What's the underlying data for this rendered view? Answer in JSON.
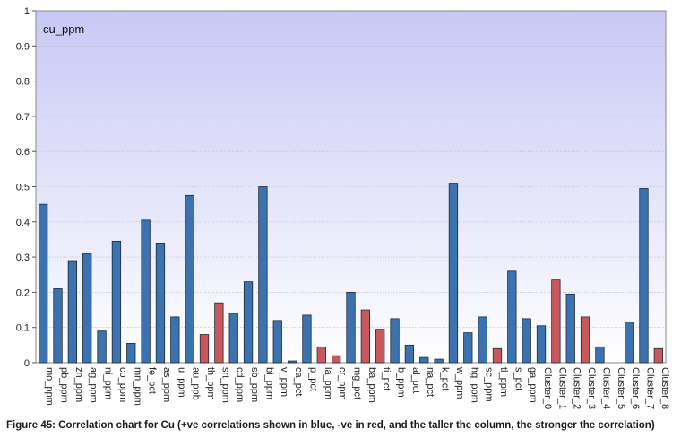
{
  "caption": "Figure 45: Correlation chart for Cu (+ve correlations shown in blue, -ve in red, and the taller the column, the stronger the correlation)",
  "colors": {
    "positive": "#3b73b0",
    "negative": "#c9585c",
    "plot_bg_top": "#c8c8f6",
    "plot_bg_bottom": "#ffffff"
  },
  "chart_data": {
    "type": "bar",
    "title": "cu_ppm",
    "xlabel": "",
    "ylabel": "",
    "ylim": [
      0,
      1
    ],
    "yticks": [
      "0",
      "0.1",
      "0.2",
      "0.3",
      "0.4",
      "0.5",
      "0.6",
      "0.7",
      "0.8",
      "0.9",
      "1"
    ],
    "grid": true,
    "legend": "none",
    "categories": [
      "mo_ppm",
      "pb_ppm",
      "zn_ppm",
      "ag_ppm",
      "ni_ppm",
      "co_ppm",
      "mn_ppm",
      "fe_pct",
      "as_ppm",
      "u_ppm",
      "au_ppb",
      "th_ppm",
      "srt_ppm",
      "cd_ppm",
      "sb_ppm",
      "bi_ppm",
      "v_ppm",
      "ca_pct",
      "p_pct",
      "la_ppm",
      "cr_ppm",
      "mg_pct",
      "ba_ppm",
      "ti_pct",
      "b_ppm",
      "al_pct",
      "na_pct",
      "k_pct",
      "w_ppm",
      "hg_ppm",
      "sc_ppm",
      "tl_ppm",
      "s_pct",
      "ga_ppm",
      "Cluster_0",
      "Cluster_1",
      "Cluster_2",
      "Cluster_3",
      "Cluster_4",
      "Cluster_5",
      "Cluster_6",
      "Cluster_7",
      "Cluster_8"
    ],
    "values": [
      0.45,
      0.21,
      0.29,
      0.31,
      0.09,
      0.345,
      0.055,
      0.405,
      0.34,
      0.13,
      0.475,
      0.08,
      0.17,
      0.14,
      0.23,
      0.5,
      0.12,
      0.005,
      0.135,
      0.045,
      0.02,
      0.2,
      0.15,
      0.095,
      0.125,
      0.05,
      0.015,
      0.01,
      0.51,
      0.085,
      0.13,
      0.04,
      0.26,
      0.125,
      0.105,
      0.235,
      0.195,
      0.13,
      0.045,
      0,
      0.115,
      0.495,
      0.04
    ],
    "sign": [
      "+",
      "+",
      "+",
      "+",
      "+",
      "+",
      "+",
      "+",
      "+",
      "+",
      "+",
      "-",
      "-",
      "+",
      "+",
      "+",
      "+",
      "+",
      "+",
      "-",
      "-",
      "+",
      "-",
      "-",
      "+",
      "+",
      "+",
      "+",
      "+",
      "+",
      "+",
      "-",
      "+",
      "+",
      "+",
      "-",
      "+",
      "-",
      "+",
      "+",
      "+",
      "+",
      "-"
    ]
  }
}
